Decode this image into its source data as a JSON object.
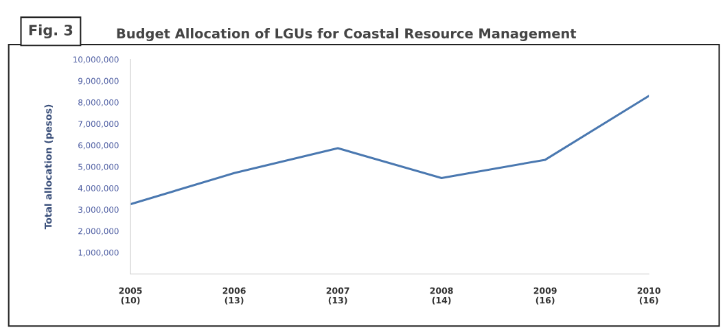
{
  "chart_data": {
    "type": "line",
    "title": "Budget Allocation of LGUs for Coastal Resource Management",
    "ylabel": "Total allocation (pesos)",
    "annotations": [
      "Fig. 3"
    ],
    "categories": [
      "2005\n(10)",
      "2006\n(13)",
      "2007\n(13)",
      "2008\n(14)",
      "2009\n(16)",
      "2010\n(16)"
    ],
    "series": [
      {
        "color": "#4a78b0",
        "values": [
          3250000,
          4700000,
          5860000,
          4470000,
          5320000,
          8300000
        ]
      }
    ],
    "ylim": [
      0,
      10000000
    ],
    "yticks": [
      {
        "value": 1000000,
        "label": "1,000,000"
      },
      {
        "value": 2000000,
        "label": "2,000,000"
      },
      {
        "value": 3000000,
        "label": "3,000,000"
      },
      {
        "value": 4000000,
        "label": "4,000,000"
      },
      {
        "value": 5000000,
        "label": "5,000,000"
      },
      {
        "value": 6000000,
        "label": "6,000,000"
      },
      {
        "value": 7000000,
        "label": "7,000,000"
      },
      {
        "value": 8000000,
        "label": "8,000,000"
      },
      {
        "value": 9000000,
        "label": "9,000,000"
      },
      {
        "value": 10000000,
        "label": "10,000,000"
      }
    ],
    "grid": false,
    "marker": "none",
    "line_style": "solid"
  }
}
